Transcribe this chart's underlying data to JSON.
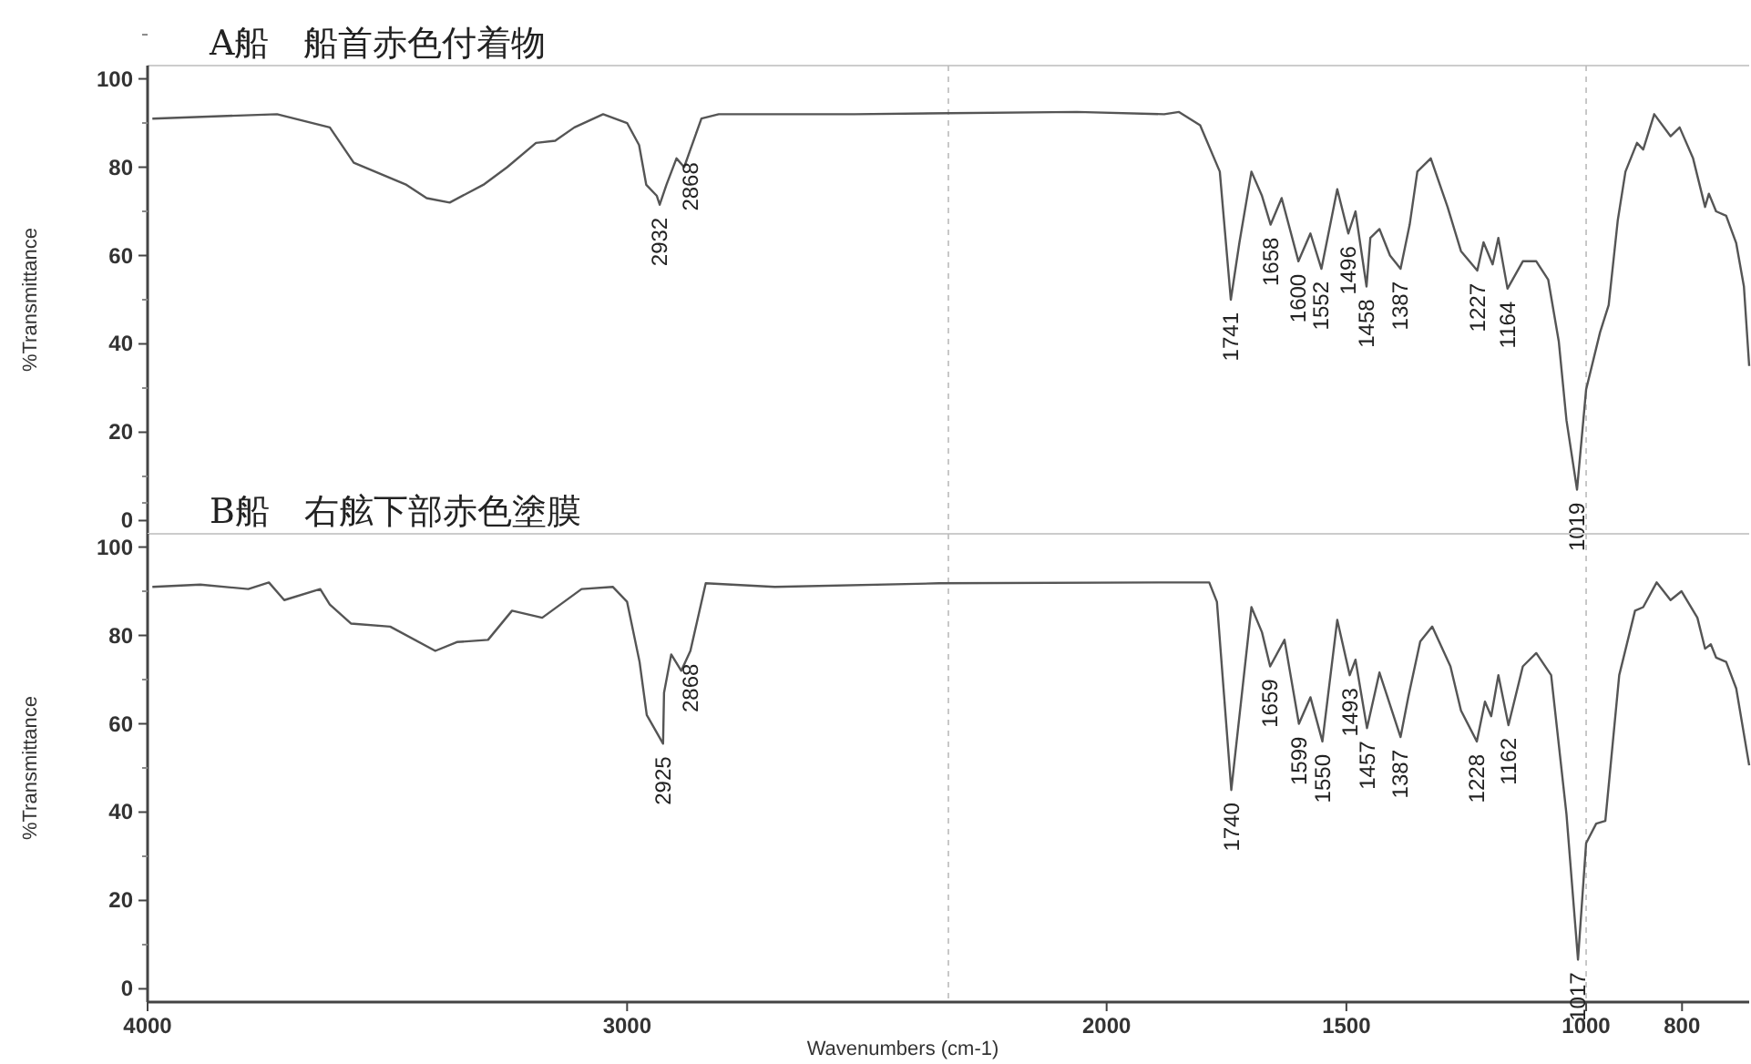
{
  "chart_data": [
    {
      "type": "line",
      "title": "A船　船首赤色付着物",
      "ylabel": "%Transmittance",
      "xlim": [
        4000,
        660
      ],
      "ylim": [
        -3,
        103
      ],
      "xticks": [
        4000,
        3000,
        2000,
        1500,
        1000,
        800
      ],
      "yticks": [
        0,
        20,
        40,
        60,
        80,
        100
      ],
      "tick_labels": "y",
      "grid": false,
      "series": [
        {
          "color": "#555555",
          "x": [
            3990,
            3730,
            3620,
            3570,
            3460,
            3418,
            3370,
            3300,
            3250,
            3190,
            3150,
            3110,
            3050,
            3000,
            2975,
            2960,
            2938,
            2932,
            2918,
            2897,
            2881,
            2868,
            2845,
            2809,
            2526,
            2062,
            1880,
            1849,
            1805,
            1764,
            1741,
            1723,
            1698,
            1676,
            1658,
            1635,
            1600,
            1575,
            1552,
            1519,
            1496,
            1481,
            1458,
            1450,
            1431,
            1409,
            1387,
            1368,
            1352,
            1324,
            1289,
            1261,
            1227,
            1214,
            1195,
            1183,
            1164,
            1132,
            1104,
            1079,
            1057,
            1041,
            1019,
            1000,
            971,
            953,
            934,
            918,
            894,
            881,
            858,
            824,
            805,
            777,
            752,
            744,
            729,
            708,
            687,
            671,
            660
          ],
          "values": [
            91,
            92,
            89,
            81,
            76,
            73,
            72,
            76,
            80,
            85.5,
            86,
            89,
            92,
            90,
            85,
            76,
            73.5,
            71.5,
            76,
            82,
            80,
            84,
            91,
            92,
            92,
            92.5,
            92,
            92.5,
            89.5,
            79,
            50,
            63,
            79,
            73.5,
            67,
            73,
            58.7,
            65,
            57,
            75,
            65,
            70,
            53,
            64,
            66,
            60,
            57,
            67,
            79,
            82,
            71,
            61,
            56.6,
            63,
            58,
            64,
            52.5,
            58.7,
            58.7,
            54.5,
            40.5,
            22.7,
            7,
            29.7,
            42.6,
            48.8,
            68,
            79,
            85.5,
            84,
            92,
            87,
            89,
            82,
            71,
            74,
            70,
            69,
            62.8,
            53,
            35
          ]
        }
      ],
      "annotations": [
        {
          "text": "2932",
          "x": 2932,
          "y": 71.5
        },
        {
          "text": "2868",
          "x": 2868,
          "y": 84
        },
        {
          "text": "1741",
          "x": 1741,
          "y": 50
        },
        {
          "text": "1658",
          "x": 1658,
          "y": 67
        },
        {
          "text": "1600",
          "x": 1600,
          "y": 58.7
        },
        {
          "text": "1552",
          "x": 1552,
          "y": 57
        },
        {
          "text": "1496",
          "x": 1496,
          "y": 65
        },
        {
          "text": "1458",
          "x": 1458,
          "y": 53
        },
        {
          "text": "1387",
          "x": 1387,
          "y": 57
        },
        {
          "text": "1227",
          "x": 1227,
          "y": 56.6
        },
        {
          "text": "1164",
          "x": 1164,
          "y": 52.5
        },
        {
          "text": "1019",
          "x": 1019,
          "y": 7
        }
      ],
      "ref_lines": [
        {
          "axis": "x",
          "value": 2330,
          "line_style": "dashed",
          "color": "#bbbbbb"
        },
        {
          "axis": "x",
          "value": 1000,
          "line_style": "dashed",
          "color": "#bbbbbb"
        }
      ]
    },
    {
      "type": "line",
      "title": "B船　右舷下部赤色塗膜",
      "xlabel": "Wavenumbers (cm-1)",
      "ylabel": "%Transmittance",
      "xlim": [
        4000,
        660
      ],
      "ylim": [
        -3,
        103
      ],
      "xticks": [
        4000,
        3000,
        2000,
        1500,
        1000,
        800
      ],
      "yticks": [
        0,
        20,
        40,
        60,
        80,
        100
      ],
      "grid": false,
      "series": [
        {
          "color": "#555555",
          "x": [
            3990,
            3890,
            3790,
            3747,
            3715,
            3640,
            3620,
            3576,
            3494,
            3400,
            3355,
            3290,
            3240,
            3177,
            3095,
            3030,
            3000,
            2974,
            2959,
            2925,
            2923,
            2908,
            2887,
            2868,
            2836,
            2692,
            2349,
            1890,
            1786,
            1770,
            1740,
            1698,
            1676,
            1659,
            1629,
            1599,
            1575,
            1550,
            1519,
            1493,
            1481,
            1457,
            1431,
            1387,
            1371,
            1346,
            1321,
            1283,
            1261,
            1228,
            1211,
            1198,
            1183,
            1162,
            1132,
            1104,
            1073,
            1041,
            1017,
            1000,
            979,
            960,
            931,
            898,
            881,
            853,
            824,
            801,
            768,
            752,
            740,
            729,
            708,
            687,
            660
          ],
          "values": [
            91,
            91.5,
            90.5,
            92,
            88,
            90.5,
            87,
            82.7,
            82,
            76.5,
            78.5,
            79,
            85.6,
            84,
            90.5,
            91,
            87.6,
            74,
            62,
            55.5,
            67,
            75.7,
            72,
            76.5,
            91.8,
            91,
            91.8,
            92,
            92,
            87.6,
            45,
            86.4,
            80.7,
            73,
            79,
            60,
            66,
            56,
            83.5,
            71,
            74.5,
            59,
            71.6,
            57,
            66,
            78.6,
            82,
            73,
            63,
            56,
            65,
            61.7,
            71,
            59.7,
            73,
            76,
            71,
            39.5,
            6.6,
            33,
            37.4,
            38,
            71,
            85.6,
            86.4,
            92,
            88,
            90,
            84,
            77,
            78,
            75,
            74,
            68,
            50.6
          ]
        }
      ],
      "annotations": [
        {
          "text": "2925",
          "x": 2925,
          "y": 55.5
        },
        {
          "text": "2868",
          "x": 2868,
          "y": 76.5
        },
        {
          "text": "1740",
          "x": 1740,
          "y": 45
        },
        {
          "text": "1659",
          "x": 1659,
          "y": 73
        },
        {
          "text": "1599",
          "x": 1599,
          "y": 60
        },
        {
          "text": "1550",
          "x": 1550,
          "y": 56
        },
        {
          "text": "1493",
          "x": 1493,
          "y": 71
        },
        {
          "text": "1457",
          "x": 1457,
          "y": 59
        },
        {
          "text": "1387",
          "x": 1387,
          "y": 57
        },
        {
          "text": "1228",
          "x": 1228,
          "y": 56
        },
        {
          "text": "1162",
          "x": 1162,
          "y": 59.7
        },
        {
          "text": "1017",
          "x": 1017,
          "y": 6.6
        }
      ],
      "ref_lines": [
        {
          "axis": "x",
          "value": 2330,
          "line_style": "dashed",
          "color": "#bbbbbb"
        },
        {
          "axis": "x",
          "value": 1000,
          "line_style": "dashed",
          "color": "#bbbbbb"
        }
      ]
    }
  ]
}
